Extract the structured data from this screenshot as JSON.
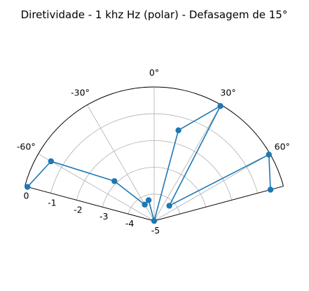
{
  "chart_data": {
    "type": "line",
    "subtype": "polar",
    "title": "Diretividade - 1 khz Hz (polar) - Defasagem de 15°",
    "theta_zero_location": "top",
    "theta_direction": "clockwise",
    "theta_range_deg": [
      -75,
      75
    ],
    "r_range": [
      -5,
      0
    ],
    "grid": true,
    "angle_ticks_deg": [
      -60,
      -30,
      0,
      30,
      60
    ],
    "angle_tick_labels": [
      "-60°",
      "-30°",
      "0°",
      "30°",
      "60°"
    ],
    "radial_ticks": [
      0,
      -1,
      -2,
      -3,
      -4,
      -5
    ],
    "radial_tick_labels": [
      "0",
      "-1",
      "-2",
      "-3",
      "-4",
      "-5"
    ],
    "series": [
      {
        "color": "#1f77b4",
        "marker": "circle",
        "points": [
          {
            "theta": -75,
            "r": -0.1
          },
          {
            "theta": -60,
            "r": -0.55
          },
          {
            "theta": -45,
            "r": -2.9
          },
          {
            "theta": -30,
            "r": -4.3
          },
          {
            "theta": -15,
            "r": -4.2
          },
          {
            "theta": 0,
            "r": -5.0
          },
          {
            "theta": 15,
            "r": -1.5
          },
          {
            "theta": 30,
            "r": -0.05
          },
          {
            "theta": 45,
            "r": -4.2
          },
          {
            "theta": 60,
            "r": -0.05
          },
          {
            "theta": 75,
            "r": -0.5
          }
        ]
      }
    ]
  }
}
